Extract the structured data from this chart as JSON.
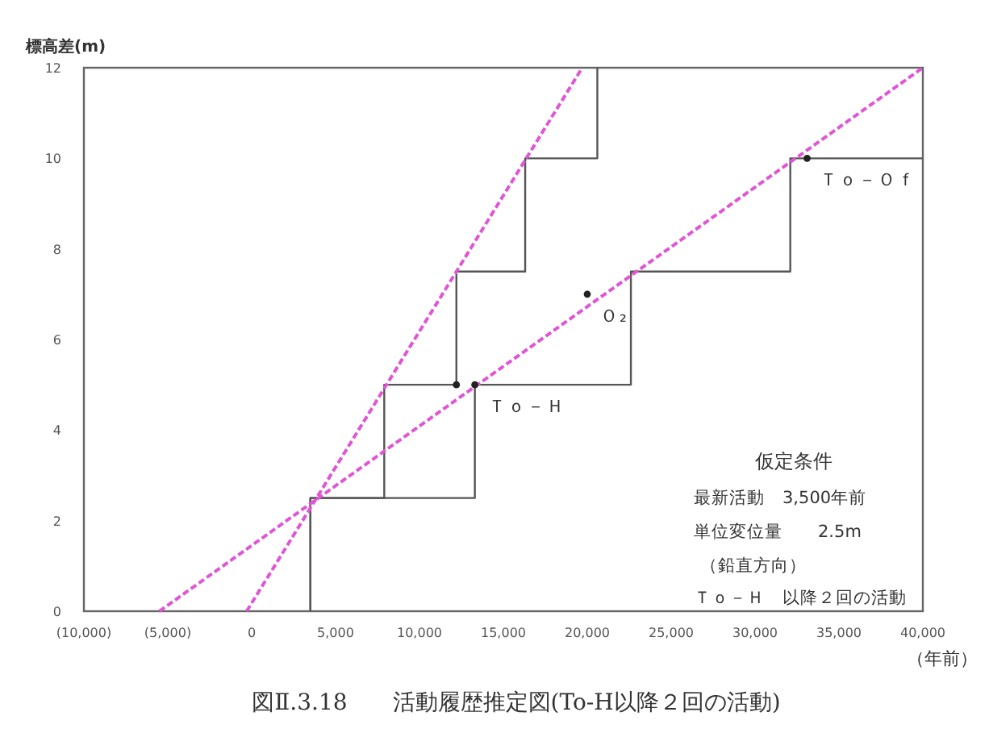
{
  "chart_data": {
    "type": "line",
    "title": "図Ⅱ.3.18　　活動履歴推定図(To-H以降２回の活動)",
    "xlabel": "（年前）",
    "ylabel": "標高差(m)",
    "xlim": [
      -10000,
      40000
    ],
    "ylim": [
      0,
      12
    ],
    "xticks": [
      {
        "value": -10000,
        "label": "(10,000)"
      },
      {
        "value": -5000,
        "label": "(5,000)"
      },
      0,
      {
        "value": 5000,
        "label": "5,000"
      },
      {
        "value": 10000,
        "label": "10,000"
      },
      {
        "value": 15000,
        "label": "15,000"
      },
      {
        "value": 20000,
        "label": "20,000"
      },
      {
        "value": 25000,
        "label": "25,000"
      },
      {
        "value": 30000,
        "label": "30,000"
      },
      {
        "value": 35000,
        "label": "35,000"
      },
      {
        "value": 40000,
        "label": "40,000"
      }
    ],
    "yticks": [
      0,
      2,
      4,
      6,
      8,
      10,
      12
    ],
    "grid": false,
    "series": [
      {
        "color": "#555555",
        "line_style": "solid",
        "x": [
          3500,
          3500,
          7900,
          7900,
          12200,
          12200,
          16300,
          16300,
          20600,
          20600
        ],
        "values": [
          0,
          2.5,
          2.5,
          5,
          5,
          7.5,
          7.5,
          10,
          10,
          12
        ]
      },
      {
        "color": "#555555",
        "line_style": "solid",
        "x": [
          3500,
          3500,
          13300,
          13300,
          22600,
          22600,
          32100,
          32100,
          40000
        ],
        "values": [
          0,
          2.5,
          2.5,
          5,
          5,
          7.5,
          7.5,
          10,
          10
        ]
      },
      {
        "color": "#e055d5",
        "line_style": "dashed",
        "x": [
          -300,
          19700
        ],
        "values": [
          0,
          12
        ]
      },
      {
        "color": "#e055d5",
        "line_style": "dashed",
        "x": [
          -5500,
          40000
        ],
        "values": [
          0,
          12
        ]
      },
      {
        "type": "scatter",
        "color": "#222222",
        "marker": "circle",
        "x": [
          12200,
          13300,
          20000,
          33100
        ],
        "values": [
          5,
          5,
          7,
          10
        ]
      }
    ],
    "annotations": [
      {
        "text": "Ｔｏ－Ｈ",
        "x": 13300,
        "y": 5
      },
      {
        "text": "Ｏ₂",
        "x": 20000,
        "y": 7
      },
      {
        "text": "Ｔｏ－Ｏｆ",
        "x": 33100,
        "y": 10
      },
      "仮定条件",
      "最新活動　3,500年前",
      "単位変位量　　2.5m",
      "（鉛直方向）",
      "Ｔｏ－Ｈ　以降２回の活動"
    ]
  }
}
